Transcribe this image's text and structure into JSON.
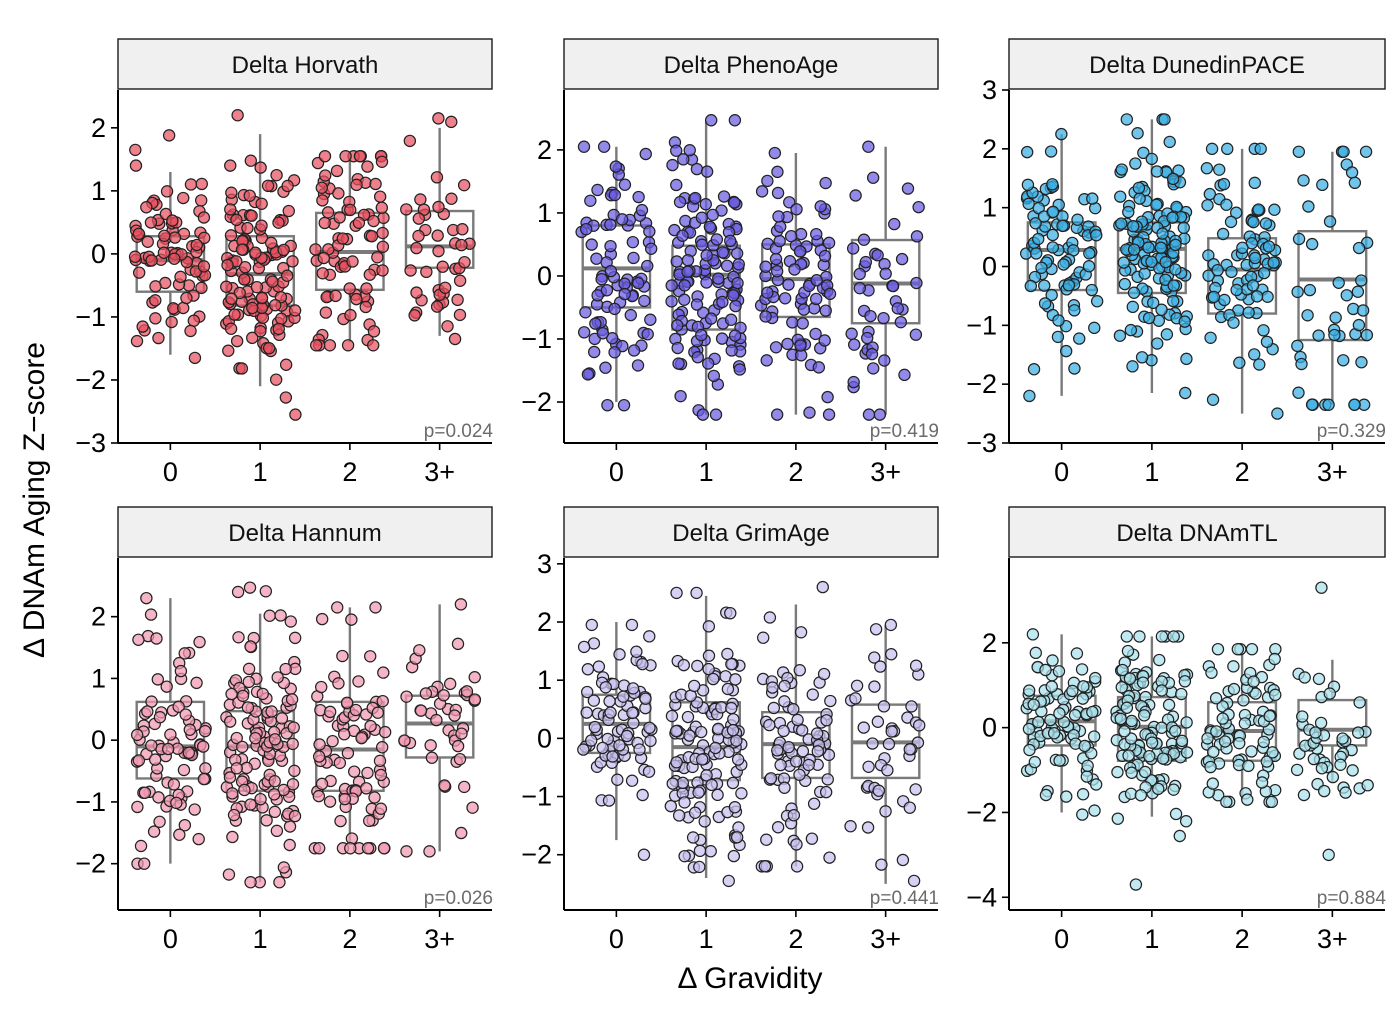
{
  "figure": {
    "ylabel": "Δ DNAm Aging Z−score",
    "xlabel": "Δ Gravidity"
  },
  "chart_data": [
    {
      "type": "boxplot",
      "title": "Delta Horvath",
      "p_label": "p=0.024",
      "color": "#e8505f",
      "categories": [
        "0",
        "1",
        "2",
        "3+"
      ],
      "ylim": [
        -3,
        2.6
      ],
      "yticks": [
        -3,
        -2,
        -1,
        0,
        1,
        2
      ],
      "ytick_labels": [
        "−3",
        "−2",
        "−1",
        "0",
        "1",
        "2"
      ],
      "boxes": [
        {
          "q1": -0.6,
          "median": -0.1,
          "q3": 0.28,
          "lo": -1.6,
          "hi": 1.3,
          "n": 85,
          "lo_pt": -1.65,
          "hi_pt": 1.88
        },
        {
          "q1": -0.82,
          "median": -0.32,
          "q3": 0.28,
          "lo": -2.1,
          "hi": 1.9,
          "n": 130,
          "lo_pt": -2.55,
          "hi_pt": 2.2
        },
        {
          "q1": -0.57,
          "median": 0.03,
          "q3": 0.65,
          "lo": -1.4,
          "hi": 1.55,
          "n": 85,
          "lo_pt": -1.45,
          "hi_pt": 1.55
        },
        {
          "q1": -0.22,
          "median": 0.12,
          "q3": 0.68,
          "lo": -1.3,
          "hi": 2.0,
          "n": 45,
          "lo_pt": -1.35,
          "hi_pt": 2.15
        }
      ]
    },
    {
      "type": "boxplot",
      "title": "Delta PhenoAge",
      "p_label": "p=0.419",
      "color": "#6a5ce0",
      "categories": [
        "0",
        "1",
        "2",
        "3+"
      ],
      "ylim": [
        -2.65,
        2.95
      ],
      "yticks": [
        -2,
        -1,
        0,
        1,
        2
      ],
      "ytick_labels": [
        "−2",
        "−1",
        "0",
        "1",
        "2"
      ],
      "boxes": [
        {
          "q1": -0.5,
          "median": 0.12,
          "q3": 0.8,
          "lo": -2.0,
          "hi": 2.05,
          "n": 85,
          "lo_pt": -2.05,
          "hi_pt": 2.05
        },
        {
          "q1": -0.85,
          "median": 0.02,
          "q3": 0.48,
          "lo": -2.2,
          "hi": 2.45,
          "n": 130,
          "lo_pt": -2.2,
          "hi_pt": 2.47
        },
        {
          "q1": -0.65,
          "median": -0.05,
          "q3": 0.5,
          "lo": -2.2,
          "hi": 1.95,
          "n": 85,
          "lo_pt": -2.2,
          "hi_pt": 1.95
        },
        {
          "q1": -0.75,
          "median": -0.12,
          "q3": 0.57,
          "lo": -2.2,
          "hi": 2.05,
          "n": 45,
          "lo_pt": -2.2,
          "hi_pt": 2.05
        }
      ]
    },
    {
      "type": "boxplot",
      "title": "Delta DunedinPACE",
      "p_label": "p=0.329",
      "color": "#3aaee3",
      "categories": [
        "0",
        "1",
        "2",
        "3+"
      ],
      "ylim": [
        -3,
        3
      ],
      "yticks": [
        -3,
        -2,
        -1,
        0,
        1,
        2,
        3
      ],
      "ytick_labels": [
        "−3",
        "−2",
        "−1",
        "0",
        "1",
        "2",
        "3"
      ],
      "boxes": [
        {
          "q1": -0.4,
          "median": 0.28,
          "q3": 0.75,
          "lo": -2.2,
          "hi": 2.25,
          "n": 90,
          "lo_pt": -2.2,
          "hi_pt": 2.25
        },
        {
          "q1": -0.45,
          "median": 0.3,
          "q3": 0.75,
          "lo": -2.15,
          "hi": 2.5,
          "n": 140,
          "lo_pt": -2.15,
          "hi_pt": 2.5
        },
        {
          "q1": -0.8,
          "median": -0.05,
          "q3": 0.48,
          "lo": -2.5,
          "hi": 2.0,
          "n": 85,
          "lo_pt": -2.5,
          "hi_pt": 2.0
        },
        {
          "q1": -1.25,
          "median": -0.22,
          "q3": 0.6,
          "lo": -2.35,
          "hi": 1.95,
          "n": 45,
          "lo_pt": -2.35,
          "hi_pt": 1.95
        }
      ]
    },
    {
      "type": "boxplot",
      "title": "Delta Hannum",
      "p_label": "p=0.026",
      "color": "#f398b2",
      "categories": [
        "0",
        "1",
        "2",
        "3+"
      ],
      "ylim": [
        -2.75,
        2.95
      ],
      "yticks": [
        -2,
        -1,
        0,
        1,
        2
      ],
      "ytick_labels": [
        "−2",
        "−1",
        "0",
        "1",
        "2"
      ],
      "boxes": [
        {
          "q1": -0.62,
          "median": -0.1,
          "q3": 0.62,
          "lo": -2.0,
          "hi": 2.3,
          "n": 85,
          "lo_pt": -2.0,
          "hi_pt": 2.3
        },
        {
          "q1": -0.82,
          "median": -0.1,
          "q3": 0.47,
          "lo": -2.3,
          "hi": 2.05,
          "n": 130,
          "lo_pt": -2.3,
          "hi_pt": 2.47
        },
        {
          "q1": -0.82,
          "median": -0.15,
          "q3": 0.62,
          "lo": -1.7,
          "hi": 2.15,
          "n": 85,
          "lo_pt": -1.75,
          "hi_pt": 2.15
        },
        {
          "q1": -0.28,
          "median": 0.27,
          "q3": 0.72,
          "lo": -1.8,
          "hi": 2.2,
          "n": 45,
          "lo_pt": -1.8,
          "hi_pt": 2.2
        }
      ]
    },
    {
      "type": "boxplot",
      "title": "Delta GrimAge",
      "p_label": "p=0.441",
      "color": "#c7c0ee",
      "categories": [
        "0",
        "1",
        "2",
        "3+"
      ],
      "ylim": [
        -2.95,
        3.1
      ],
      "yticks": [
        -2,
        -1,
        0,
        1,
        2,
        3
      ],
      "ytick_labels": [
        "−2",
        "−1",
        "0",
        "1",
        "2",
        "3"
      ],
      "boxes": [
        {
          "q1": -0.25,
          "median": 0.25,
          "q3": 0.75,
          "lo": -1.75,
          "hi": 2.0,
          "n": 85,
          "lo_pt": -2.0,
          "hi_pt": 1.95
        },
        {
          "q1": -0.72,
          "median": -0.15,
          "q3": 0.62,
          "lo": -2.4,
          "hi": 2.45,
          "n": 130,
          "lo_pt": -2.45,
          "hi_pt": 2.5
        },
        {
          "q1": -0.68,
          "median": -0.1,
          "q3": 0.45,
          "lo": -2.2,
          "hi": 2.3,
          "n": 85,
          "lo_pt": -2.2,
          "hi_pt": 2.6
        },
        {
          "q1": -0.68,
          "median": -0.07,
          "q3": 0.58,
          "lo": -2.5,
          "hi": 1.95,
          "n": 45,
          "lo_pt": -2.45,
          "hi_pt": 1.95
        }
      ]
    },
    {
      "type": "boxplot",
      "title": "Delta DNAmTL",
      "p_label": "p=0.884",
      "color": "#a9e0ec",
      "categories": [
        "0",
        "1",
        "2",
        "3+"
      ],
      "ylim": [
        -4.3,
        4
      ],
      "yticks": [
        -4,
        -2,
        0,
        2
      ],
      "ytick_labels": [
        "−4",
        "−2",
        "0",
        "2"
      ],
      "boxes": [
        {
          "q1": -0.42,
          "median": 0.15,
          "q3": 0.75,
          "lo": -2.0,
          "hi": 2.2,
          "n": 90,
          "lo_pt": -2.05,
          "hi_pt": 2.2
        },
        {
          "q1": -0.78,
          "median": 0.02,
          "q3": 0.72,
          "lo": -2.1,
          "hi": 2.15,
          "n": 130,
          "lo_pt": -3.7,
          "hi_pt": 2.15
        },
        {
          "q1": -0.78,
          "median": -0.08,
          "q3": 0.6,
          "lo": -1.7,
          "hi": 1.85,
          "n": 85,
          "lo_pt": -1.75,
          "hi_pt": 1.85
        },
        {
          "q1": -0.42,
          "median": -0.05,
          "q3": 0.65,
          "lo": -1.3,
          "hi": 1.6,
          "n": 45,
          "lo_pt": -3.0,
          "hi_pt": 3.3
        }
      ]
    }
  ]
}
